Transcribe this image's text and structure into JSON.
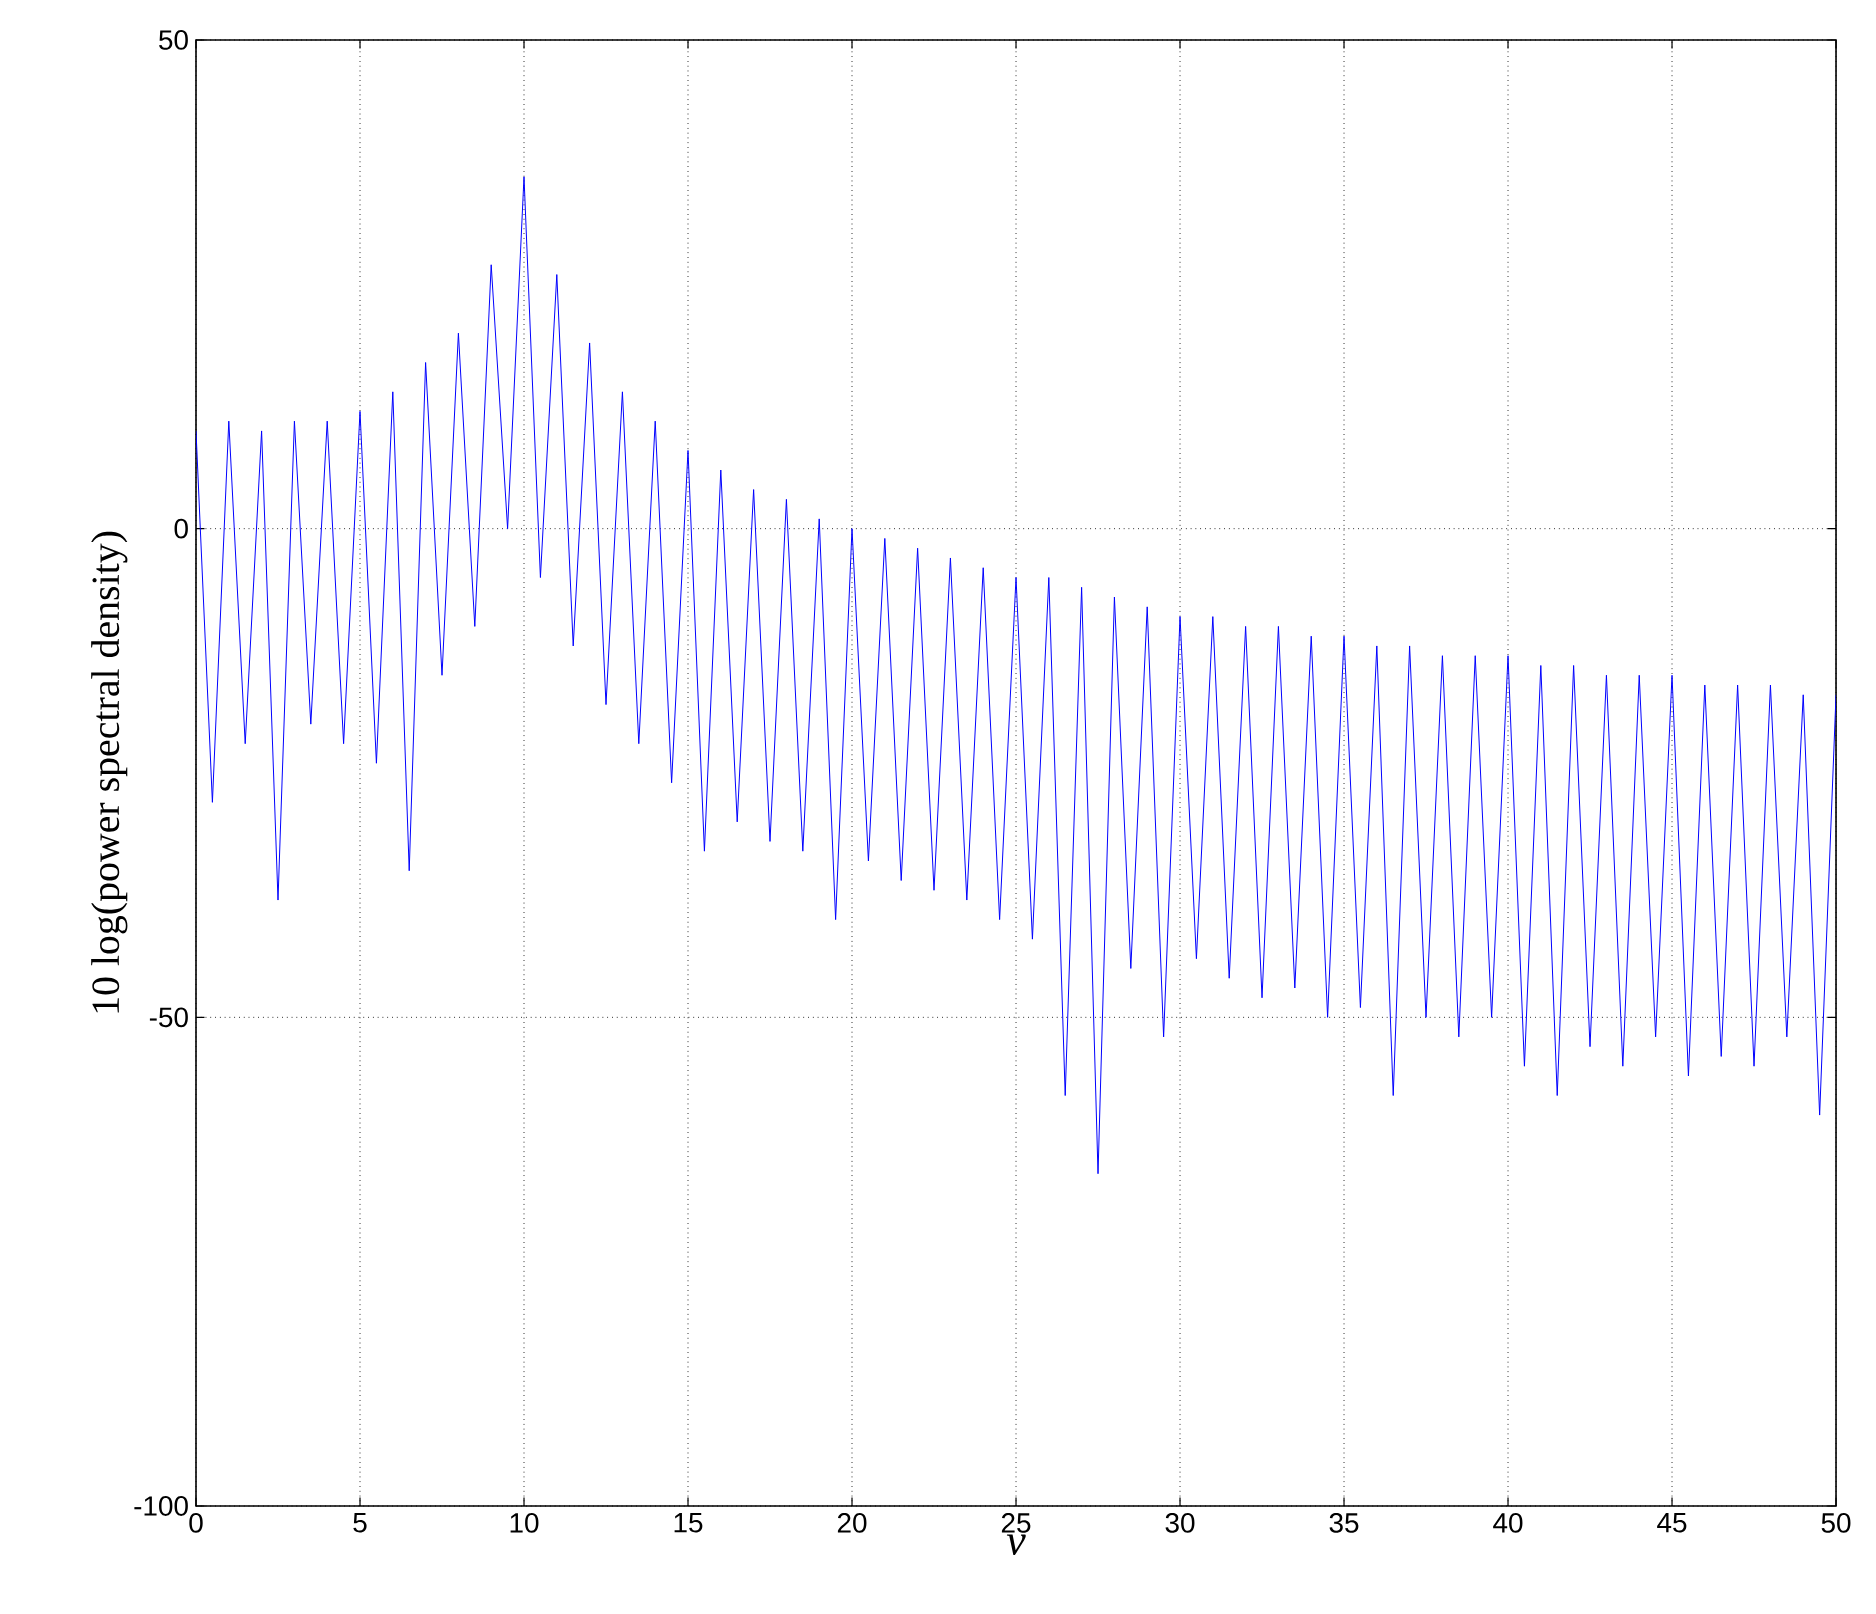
{
  "chart_data": {
    "type": "line",
    "xlabel": "ν",
    "ylabel": "10 log(power spectral density)",
    "xlim": [
      0,
      50
    ],
    "ylim": [
      -100,
      50
    ],
    "xticks": [
      0,
      5,
      10,
      15,
      20,
      25,
      30,
      35,
      40,
      45,
      50
    ],
    "yticks": [
      -100,
      -50,
      0,
      50
    ],
    "grid": true,
    "series": [
      {
        "color": "#0000ff",
        "x": [
          0,
          0.5,
          1,
          1.5,
          2,
          2.5,
          3,
          3.5,
          4,
          4.5,
          5,
          5.5,
          6,
          6.5,
          7,
          7.5,
          8,
          8.5,
          9,
          9.5,
          10,
          10.5,
          11,
          11.5,
          12,
          12.5,
          13,
          13.5,
          14,
          14.5,
          15,
          15.5,
          16,
          16.5,
          17,
          17.5,
          18,
          18.5,
          19,
          19.5,
          20,
          20.5,
          21,
          21.5,
          22,
          22.5,
          23,
          23.5,
          24,
          24.5,
          25,
          25.5,
          26,
          26.5,
          27,
          27.5,
          28,
          28.5,
          29,
          29.5,
          30,
          30.5,
          31,
          31.5,
          32,
          32.5,
          33,
          33.5,
          34,
          34.5,
          35,
          35.5,
          36,
          36.5,
          37,
          37.5,
          38,
          38.5,
          39,
          39.5,
          40,
          40.5,
          41,
          41.5,
          42,
          42.5,
          43,
          43.5,
          44,
          44.5,
          45,
          45.5,
          46,
          46.5,
          47,
          47.5,
          48,
          48.5,
          49,
          49.5,
          50
        ],
        "values": [
          10,
          -28,
          11,
          -22,
          10,
          -38,
          11,
          -20,
          11,
          -22,
          12,
          -24,
          14,
          -35,
          17,
          -15,
          20,
          -10,
          27,
          0,
          36,
          -5,
          26,
          -12,
          19,
          -18,
          14,
          -22,
          11,
          -26,
          8,
          -33,
          6,
          -30,
          4,
          -32,
          3,
          -33,
          1,
          -40,
          0,
          -34,
          -1,
          -36,
          -2,
          -37,
          -3,
          -38,
          -4,
          -40,
          -5,
          -42,
          -5,
          -58,
          -6,
          -66,
          -7,
          -45,
          -8,
          -52,
          -9,
          -44,
          -9,
          -46,
          -10,
          -48,
          -10,
          -47,
          -11,
          -50,
          -11,
          -49,
          -12,
          -58,
          -12,
          -50,
          -13,
          -52,
          -13,
          -50,
          -13,
          -55,
          -14,
          -58,
          -14,
          -53,
          -15,
          -55,
          -15,
          -52,
          -15,
          -56,
          -16,
          -54,
          -16,
          -55,
          -16,
          -52,
          -17,
          -60,
          -17
        ]
      }
    ]
  }
}
